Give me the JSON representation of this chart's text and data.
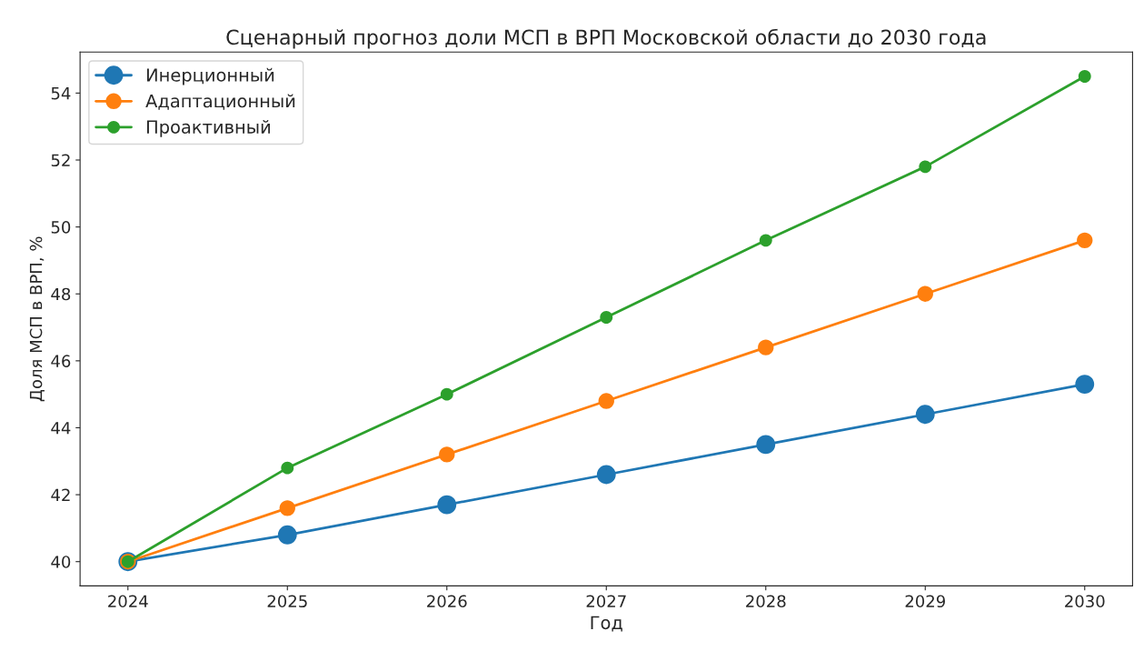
{
  "chart_data": {
    "type": "line",
    "title": "Сценарный прогноз доли МСП в ВРП Московской области до 2030 года",
    "xlabel": "Год",
    "ylabel": "Доля МСП в ВРП, %",
    "x": [
      2024,
      2025,
      2026,
      2027,
      2028,
      2029,
      2030
    ],
    "series": [
      {
        "name": "Инерционный",
        "color": "#1f77b4",
        "values": [
          40.0,
          40.8,
          41.7,
          42.6,
          43.5,
          44.4,
          45.3
        ]
      },
      {
        "name": "Адаптационный",
        "color": "#ff7f0e",
        "values": [
          40.0,
          41.6,
          43.2,
          44.8,
          46.4,
          48.0,
          49.6
        ]
      },
      {
        "name": "Проактивный",
        "color": "#2ca02c",
        "values": [
          40.0,
          42.8,
          45.0,
          47.3,
          49.6,
          51.8,
          54.5
        ]
      }
    ],
    "xlim": [
      2023.7,
      2030.3
    ],
    "xticks": [
      2024,
      2025,
      2026,
      2027,
      2028,
      2029,
      2030
    ],
    "ylim": [
      39.275,
      55.225
    ],
    "yticks": [
      40,
      42,
      44,
      46,
      48,
      50,
      52,
      54
    ],
    "marker": "circle",
    "line_style": "solid",
    "grid": false,
    "legend": "top left"
  }
}
